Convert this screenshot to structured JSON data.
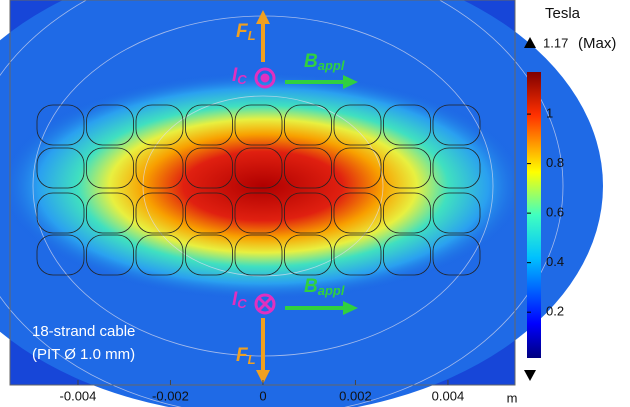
{
  "chart_data": {
    "type": "field",
    "xlim": [
      -0.00547,
      0.00545
    ],
    "xticks": [
      -0.004,
      -0.002,
      0,
      0.002,
      0.004
    ],
    "x_unit": "m",
    "colorbar_title": "Tesla",
    "max_value": 1.17,
    "max_note": "(Max)",
    "clim": [
      0.015,
      1.17
    ],
    "cticks": [
      0.2,
      0.4,
      0.6,
      0.8,
      1
    ],
    "labels_top": [
      {
        "main": "F",
        "sub": "L"
      },
      {
        "main": "I",
        "sub": "C"
      },
      {
        "main": "B",
        "sub": "appl"
      }
    ],
    "labels_bottom": [
      {
        "main": "I",
        "sub": "C"
      },
      {
        "main": "B",
        "sub": "appl"
      },
      {
        "main": "F",
        "sub": "L"
      }
    ],
    "caption": [
      "18-strand cable",
      "(PIT Ø 1.0 mm)"
    ]
  }
}
